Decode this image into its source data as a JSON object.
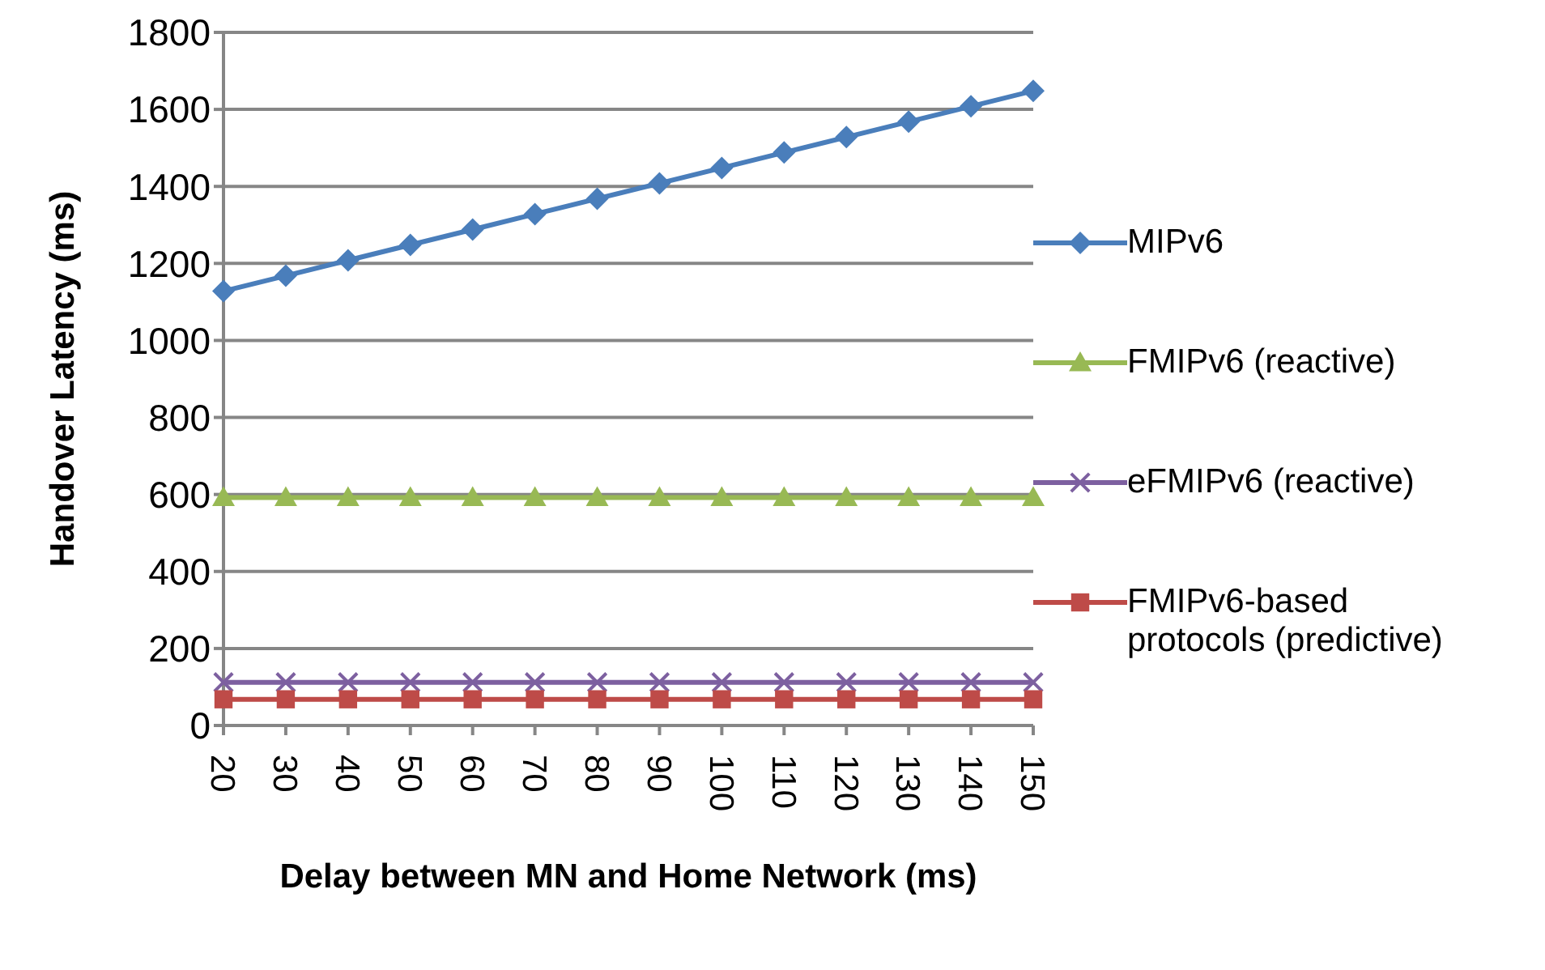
{
  "chart_data": {
    "type": "line",
    "xlabel": "Delay between MN and Home Network (ms)",
    "ylabel": "Handover Latency (ms)",
    "categories": [
      "20",
      "30",
      "40",
      "50",
      "60",
      "70",
      "80",
      "90",
      "100",
      "110",
      "120",
      "130",
      "140",
      "150"
    ],
    "series": [
      {
        "name": "MIPv6",
        "color": "#4a7ebb",
        "marker": "diamond",
        "values": [
          1128,
          1168,
          1208,
          1248,
          1288,
          1328,
          1368,
          1408,
          1448,
          1488,
          1528,
          1568,
          1608,
          1648
        ]
      },
      {
        "name": "FMIPv6 (reactive)",
        "color": "#98b954",
        "marker": "triangle",
        "values": [
          592,
          592,
          592,
          592,
          592,
          592,
          592,
          592,
          592,
          592,
          592,
          592,
          592,
          592
        ]
      },
      {
        "name": "eFMIPv6 (reactive)",
        "color": "#7d60a0",
        "marker": "cross",
        "values": [
          112,
          112,
          112,
          112,
          112,
          112,
          112,
          112,
          112,
          112,
          112,
          112,
          112,
          112
        ]
      },
      {
        "name": "FMIPv6-based protocols (predictive)",
        "color": "#be4b48",
        "marker": "square",
        "values": [
          68,
          68,
          68,
          68,
          68,
          68,
          68,
          68,
          68,
          68,
          68,
          68,
          68,
          68
        ]
      }
    ],
    "ylim": [
      0,
      1800
    ],
    "yticks": [
      0,
      200,
      400,
      600,
      800,
      1000,
      1200,
      1400,
      1600,
      1800
    ],
    "grid": "y",
    "legend": "right",
    "line_style": "solid"
  }
}
